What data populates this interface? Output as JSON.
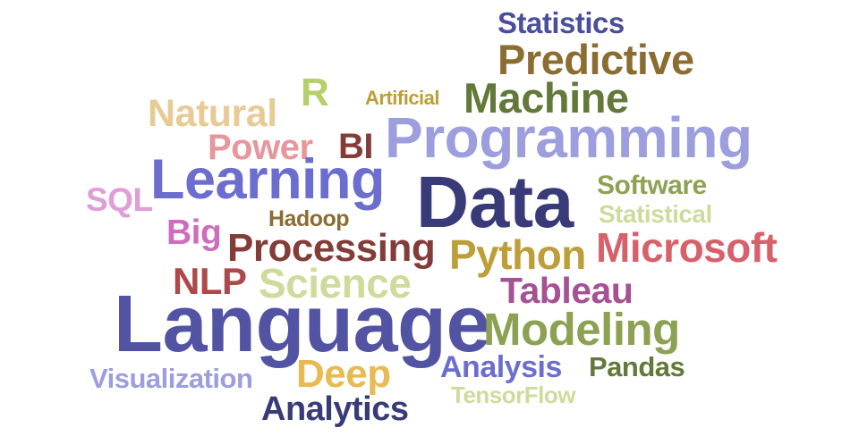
{
  "words": [
    {
      "text": "Statistics",
      "color": "#4a4f9c"
    },
    {
      "text": "Predictive",
      "color": "#8c6d31"
    },
    {
      "text": "R",
      "color": "#b5cf6b"
    },
    {
      "text": "Artificial",
      "color": "#bd9e39"
    },
    {
      "text": "Machine",
      "color": "#637939"
    },
    {
      "text": "Natural",
      "color": "#e7cb94"
    },
    {
      "text": "Programming",
      "color": "#9c9ede"
    },
    {
      "text": "Power",
      "color": "#e7969c"
    },
    {
      "text": "BI",
      "color": "#843c39"
    },
    {
      "text": "Learning",
      "color": "#6b6ecf"
    },
    {
      "text": "Data",
      "color": "#393b79"
    },
    {
      "text": "Software",
      "color": "#8ca252"
    },
    {
      "text": "SQL",
      "color": "#de9ed6"
    },
    {
      "text": "Hadoop",
      "color": "#8c6d31"
    },
    {
      "text": "Statistical",
      "color": "#cedb9c"
    },
    {
      "text": "Big",
      "color": "#ce6dbd"
    },
    {
      "text": "Processing",
      "color": "#843c39"
    },
    {
      "text": "Python",
      "color": "#bd9e39"
    },
    {
      "text": "Microsoft",
      "color": "#d6616b"
    },
    {
      "text": "NLP",
      "color": "#ad494a"
    },
    {
      "text": "Science",
      "color": "#cedb9c"
    },
    {
      "text": "Tableau",
      "color": "#a55194"
    },
    {
      "text": "Language",
      "color": "#5254a3"
    },
    {
      "text": "Modeling",
      "color": "#8ca252"
    },
    {
      "text": "Visualization",
      "color": "#9c9ede"
    },
    {
      "text": "Deep",
      "color": "#e7ba52"
    },
    {
      "text": "Analysis",
      "color": "#6b6ecf"
    },
    {
      "text": "Pandas",
      "color": "#637939"
    },
    {
      "text": "TensorFlow",
      "color": "#cedb9c"
    },
    {
      "text": "Analytics",
      "color": "#393b79"
    }
  ]
}
